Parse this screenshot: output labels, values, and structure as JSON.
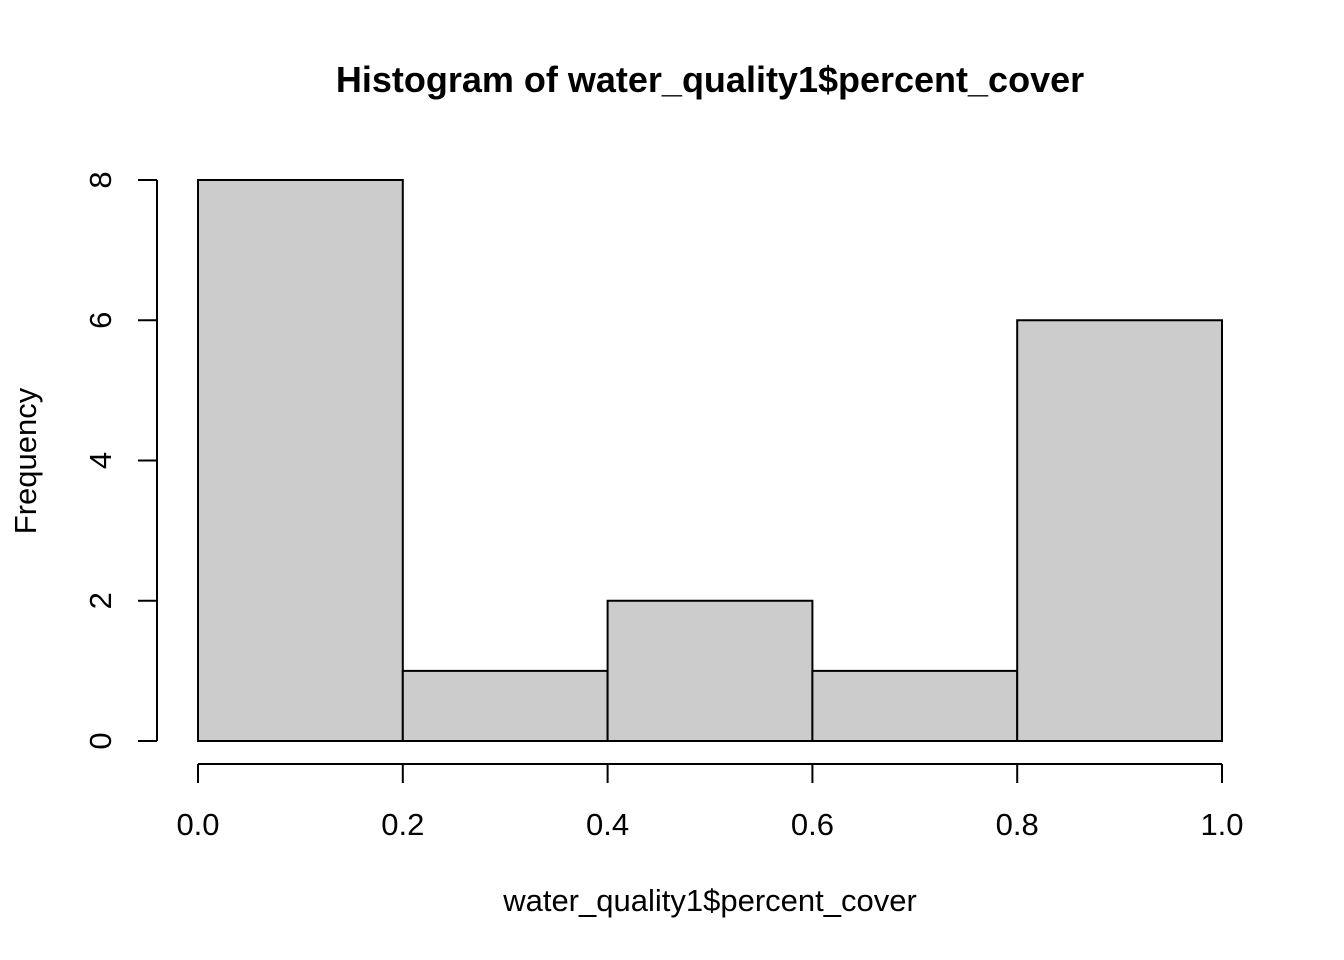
{
  "chart_data": {
    "type": "bar",
    "subtype": "histogram",
    "title": "Histogram of water_quality1$percent_cover",
    "xlabel": "water_quality1$percent_cover",
    "ylabel": "Frequency",
    "bins": [
      {
        "x0": 0.0,
        "x1": 0.2,
        "count": 8
      },
      {
        "x0": 0.2,
        "x1": 0.4,
        "count": 1
      },
      {
        "x0": 0.4,
        "x1": 0.6,
        "count": 2
      },
      {
        "x0": 0.6,
        "x1": 0.8,
        "count": 1
      },
      {
        "x0": 0.8,
        "x1": 1.0,
        "count": 6
      }
    ],
    "xlim": [
      0.0,
      1.0
    ],
    "ylim": [
      0,
      8
    ],
    "x_ticks": [
      "0.0",
      "0.2",
      "0.4",
      "0.6",
      "0.8",
      "1.0"
    ],
    "y_ticks": [
      "0",
      "2",
      "4",
      "6",
      "8"
    ],
    "bar_color": "#cccccc",
    "grid": false,
    "legend": "none"
  }
}
